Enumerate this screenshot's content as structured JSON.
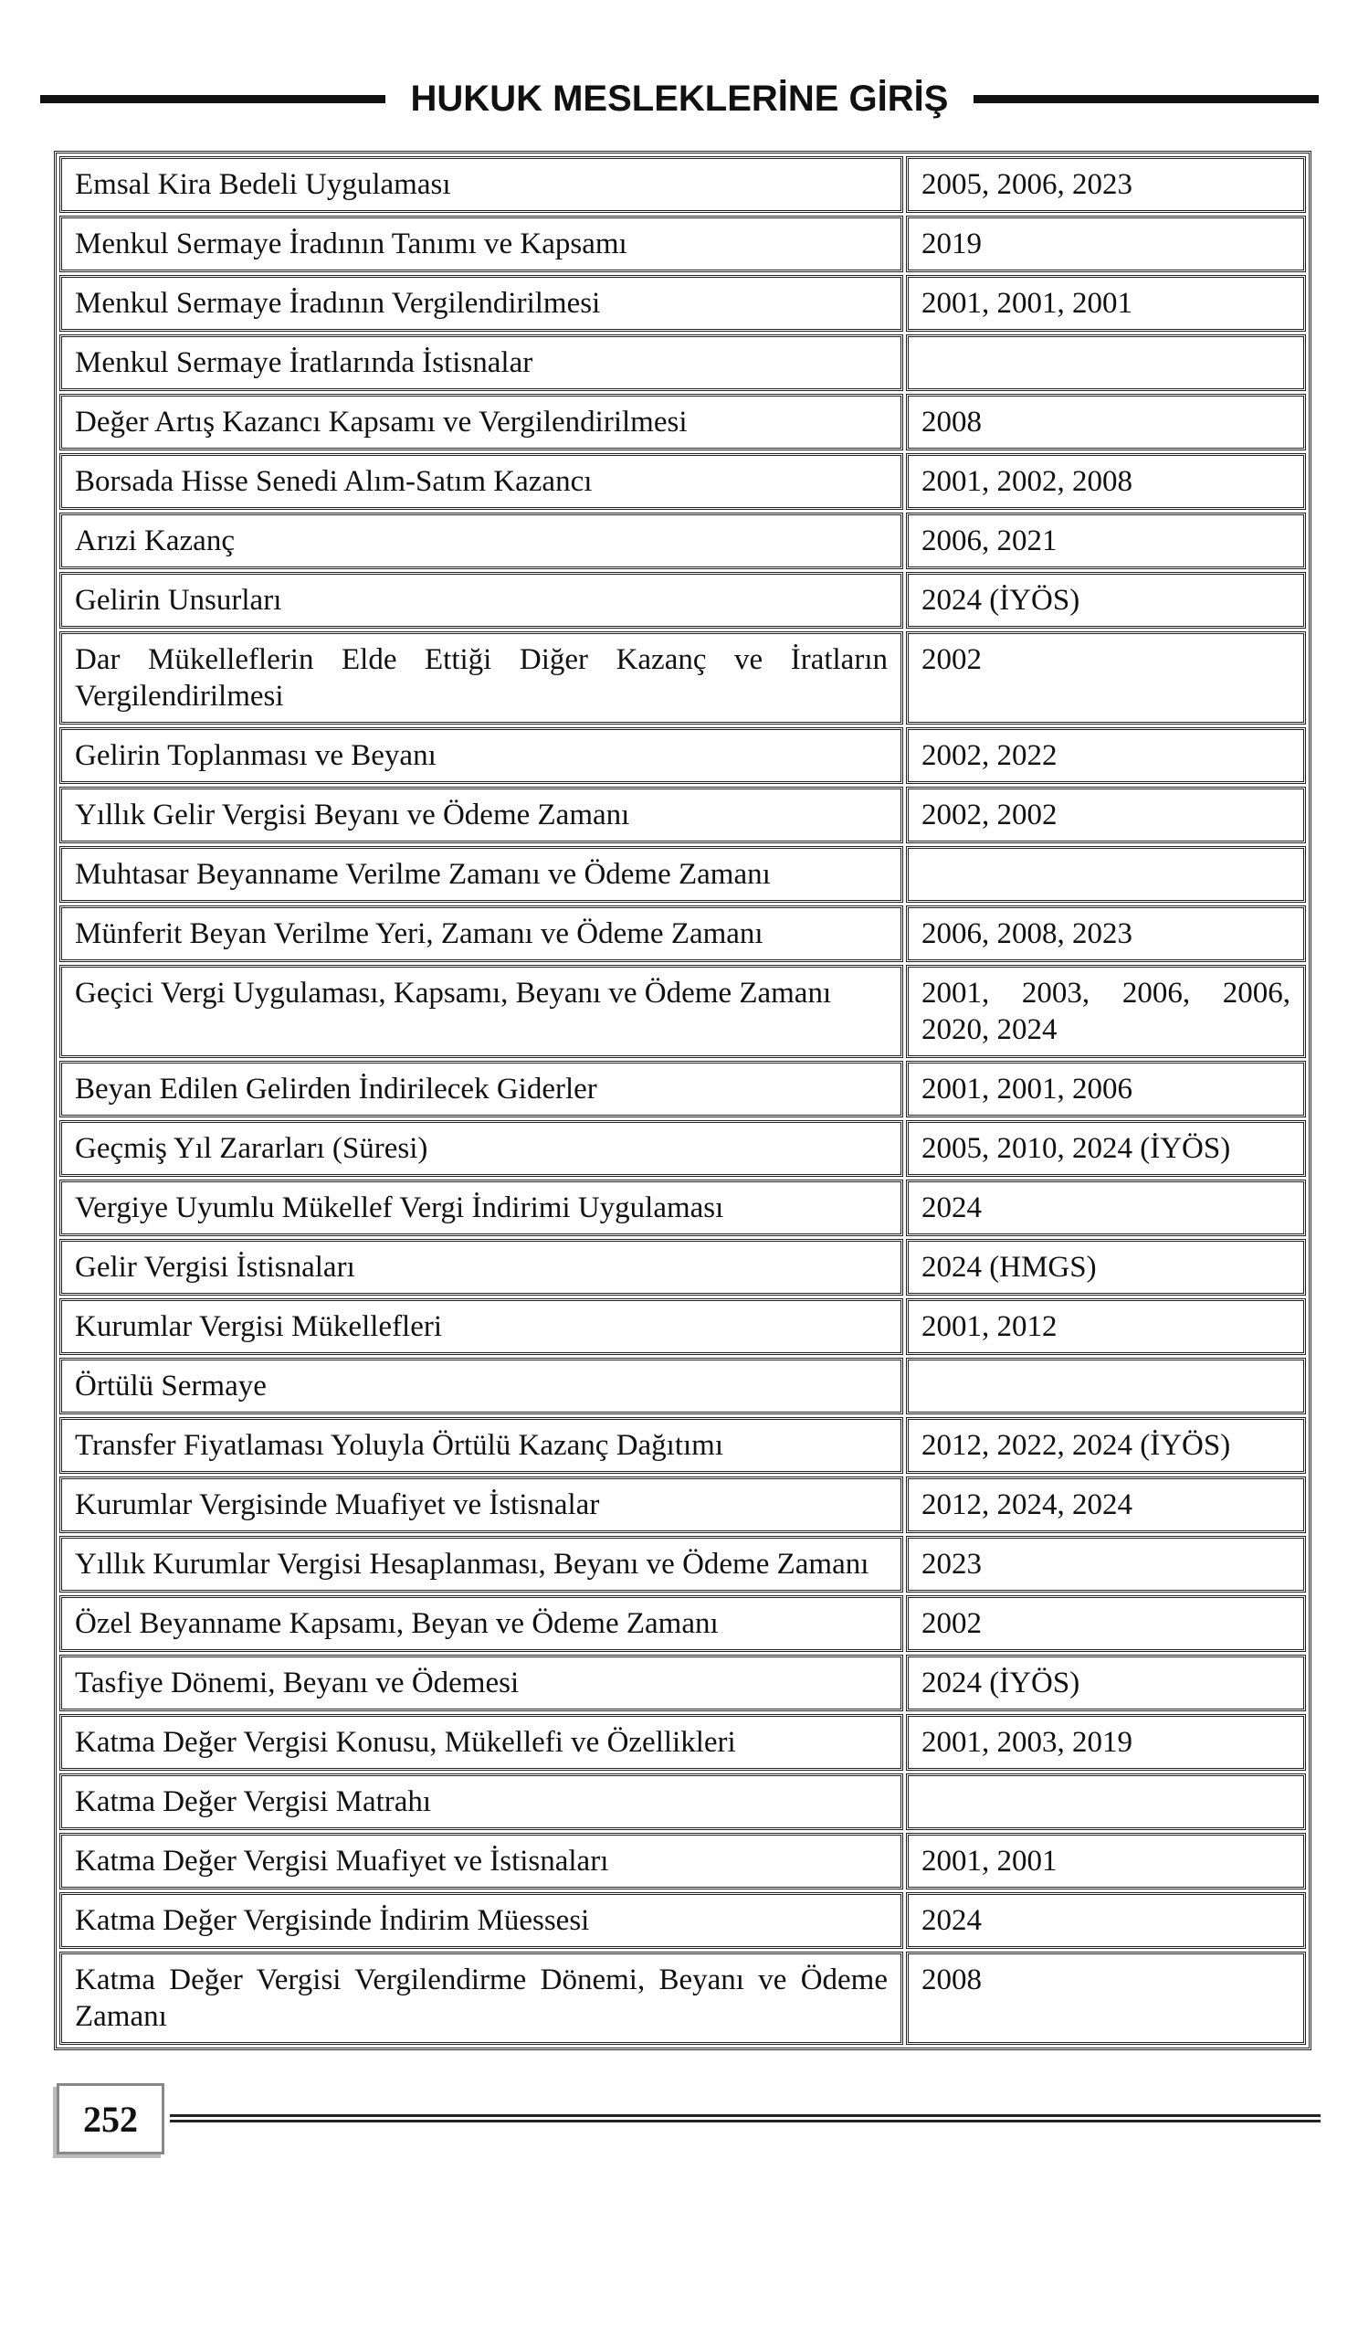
{
  "header": {
    "title": "HUKUK MESLEKLERİNE GİRİŞ"
  },
  "table": {
    "rows": [
      {
        "topic": "Emsal Kira Bedeli Uygulaması",
        "years": "2005, 2006, 2023"
      },
      {
        "topic": "Menkul Sermaye İradının Tanımı ve Kapsamı",
        "years": "2019"
      },
      {
        "topic": "Menkul Sermaye İradının Vergilendirilmesi",
        "years": "2001, 2001, 2001"
      },
      {
        "topic": "Menkul Sermaye İratlarında İstisnalar",
        "years": ""
      },
      {
        "topic": "Değer Artış Kazancı Kapsamı ve Vergilendirilmesi",
        "years": "2008"
      },
      {
        "topic": "Borsada Hisse Senedi Alım-Satım Kazancı",
        "years": "2001, 2002, 2008"
      },
      {
        "topic": "Arızi Kazanç",
        "years": "2006, 2021"
      },
      {
        "topic": "Gelirin Unsurları",
        "years": "2024 (İYÖS)"
      },
      {
        "topic": "Dar Mükelleflerin Elde Ettiği Diğer Kazanç ve İratların Vergilendirilmesi",
        "years": "2002"
      },
      {
        "topic": "Gelirin Toplanması ve Beyanı",
        "years": "2002, 2022"
      },
      {
        "topic": "Yıllık Gelir Vergisi Beyanı ve Ödeme Zamanı",
        "years": "2002, 2002"
      },
      {
        "topic": "Muhtasar Beyanname Verilme Zamanı ve Ödeme Zamanı",
        "years": ""
      },
      {
        "topic": "Münferit Beyan Verilme Yeri, Zamanı ve Ödeme Zamanı",
        "years": "2006, 2008, 2023"
      },
      {
        "topic": "Geçici Vergi Uygulaması, Kapsamı, Beyanı ve Ödeme Zamanı",
        "years": "2001, 2003, 2006, 2006, 2020, 2024"
      },
      {
        "topic": "Beyan Edilen Gelirden İndirilecek Giderler",
        "years": "2001, 2001, 2006"
      },
      {
        "topic": "Geçmiş Yıl Zararları (Süresi)",
        "years": "2005, 2010, 2024 (İYÖS)"
      },
      {
        "topic": "Vergiye Uyumlu Mükellef Vergi İndirimi Uygulaması",
        "years": "2024"
      },
      {
        "topic": "Gelir Vergisi İstisnaları",
        "years": "2024 (HMGS)"
      },
      {
        "topic": "Kurumlar Vergisi Mükellefleri",
        "years": "2001, 2012"
      },
      {
        "topic": "Örtülü Sermaye",
        "years": ""
      },
      {
        "topic": "Transfer Fiyatlaması Yoluyla Örtülü Kazanç Dağıtımı",
        "years": "2012, 2022, 2024 (İYÖS)"
      },
      {
        "topic": "Kurumlar Vergisinde Muafiyet ve İstisnalar",
        "years": "2012, 2024, 2024"
      },
      {
        "topic": "Yıllık Kurumlar Vergisi Hesaplanması, Beyanı ve Ödeme Zamanı",
        "years": "2023"
      },
      {
        "topic": "Özel Beyanname Kapsamı, Beyan ve Ödeme Zamanı",
        "years": "2002"
      },
      {
        "topic": "Tasfiye Dönemi, Beyanı ve Ödemesi",
        "years": "2024 (İYÖS)"
      },
      {
        "topic": "Katma Değer Vergisi Konusu, Mükellefi ve Özellikleri",
        "years": "2001, 2003, 2019"
      },
      {
        "topic": "Katma Değer Vergisi Matrahı",
        "years": ""
      },
      {
        "topic": "Katma Değer Vergisi Muafiyet ve İstisnaları",
        "years": "2001, 2001"
      },
      {
        "topic": "Katma Değer Vergisinde İndirim Müessesi",
        "years": "2024"
      },
      {
        "topic": "Katma Değer Vergisi Vergilendirme Dönemi, Beyanı ve Ödeme Zamanı",
        "years": "2008"
      }
    ]
  },
  "footer": {
    "page_number": "252"
  }
}
